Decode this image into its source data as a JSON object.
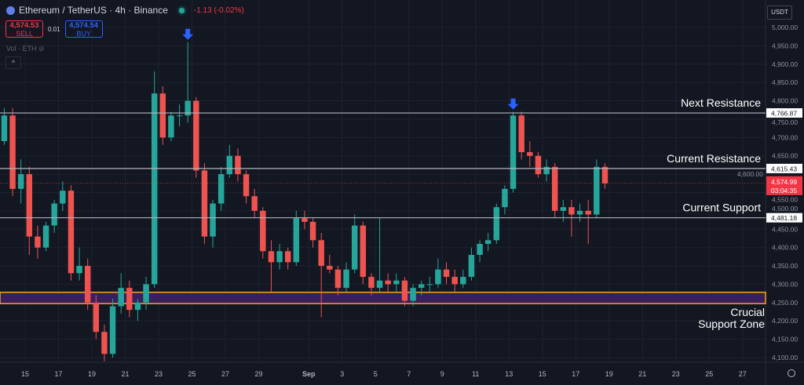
{
  "header": {
    "symbol": "Ethereum / TetherUS · 4h · Binance",
    "change": "-1.13 (-0.02%)",
    "sell_price": "4,574.53",
    "sell_label": "SELL",
    "spread": "0.01",
    "buy_price": "4,574.54",
    "buy_label": "BUY",
    "volume_label": "Vol · ETH",
    "currency_button": "USDT"
  },
  "colors": {
    "up": "#26a69a",
    "down": "#ef5350",
    "zone_fill": "#3a1f5d",
    "zone_border": "#f7a21b",
    "arrow": "#2962ff",
    "background": "#131722"
  },
  "chart_data": {
    "type": "candlestick",
    "title": "Ethereum / TetherUS · 4h · Binance",
    "ylim": [
      4085,
      5030
    ],
    "y_ticks": [
      "4,100.00",
      "4,150.00",
      "4,200.00",
      "4,250.00",
      "4,300.00",
      "4,350.00",
      "4,400.00",
      "4,450.00",
      "4,500.00",
      "4,550.00",
      "4,600.00",
      "4,650.00",
      "4,700.00",
      "4,750.00",
      "4,800.00",
      "4,850.00",
      "4,900.00",
      "4,950.00",
      "5,000.00"
    ],
    "x_ticks": [
      "15",
      "17",
      "19",
      "21",
      "23",
      "25",
      "27",
      "29",
      "Sep",
      "3",
      "5",
      "7",
      "9",
      "11",
      "13",
      "15",
      "17",
      "19",
      "21",
      "23",
      "25",
      "27"
    ],
    "candles_ohlc": [
      [
        4690,
        4780,
        4680,
        4760
      ],
      [
        4760,
        4780,
        4540,
        4560
      ],
      [
        4560,
        4640,
        4520,
        4600
      ],
      [
        4600,
        4620,
        4380,
        4430
      ],
      [
        4430,
        4460,
        4370,
        4400
      ],
      [
        4400,
        4470,
        4390,
        4460
      ],
      [
        4460,
        4530,
        4440,
        4520
      ],
      [
        4520,
        4580,
        4500,
        4555
      ],
      [
        4555,
        4570,
        4310,
        4330
      ],
      [
        4330,
        4400,
        4310,
        4350
      ],
      [
        4350,
        4370,
        4230,
        4250
      ],
      [
        4250,
        4270,
        4150,
        4170
      ],
      [
        4170,
        4190,
        4090,
        4110
      ],
      [
        4110,
        4260,
        4100,
        4240
      ],
      [
        4240,
        4330,
        4220,
        4290
      ],
      [
        4290,
        4310,
        4210,
        4230
      ],
      [
        4230,
        4260,
        4200,
        4250
      ],
      [
        4250,
        4320,
        4230,
        4300
      ],
      [
        4300,
        4880,
        4290,
        4820
      ],
      [
        4820,
        4840,
        4680,
        4700
      ],
      [
        4700,
        4770,
        4690,
        4760
      ],
      [
        4760,
        4790,
        4730,
        4760
      ],
      [
        4760,
        4960,
        4740,
        4800
      ],
      [
        4800,
        4810,
        4590,
        4610
      ],
      [
        4610,
        4630,
        4410,
        4430
      ],
      [
        4430,
        4530,
        4400,
        4520
      ],
      [
        4520,
        4620,
        4500,
        4600
      ],
      [
        4600,
        4680,
        4590,
        4650
      ],
      [
        4650,
        4670,
        4580,
        4600
      ],
      [
        4600,
        4610,
        4520,
        4540
      ],
      [
        4540,
        4560,
        4480,
        4500
      ],
      [
        4500,
        4510,
        4370,
        4390
      ],
      [
        4390,
        4420,
        4280,
        4360
      ],
      [
        4360,
        4410,
        4340,
        4390
      ],
      [
        4390,
        4400,
        4340,
        4360
      ],
      [
        4360,
        4500,
        4350,
        4480
      ],
      [
        4480,
        4500,
        4450,
        4470
      ],
      [
        4470,
        4480,
        4400,
        4420
      ],
      [
        4420,
        4440,
        4210,
        4350
      ],
      [
        4350,
        4380,
        4330,
        4340
      ],
      [
        4340,
        4350,
        4270,
        4290
      ],
      [
        4290,
        4360,
        4280,
        4340
      ],
      [
        4340,
        4490,
        4330,
        4460
      ],
      [
        4460,
        4470,
        4300,
        4320
      ],
      [
        4320,
        4330,
        4270,
        4290
      ],
      [
        4290,
        4480,
        4280,
        4310
      ],
      [
        4310,
        4330,
        4280,
        4300
      ],
      [
        4300,
        4330,
        4280,
        4310
      ],
      [
        4310,
        4320,
        4240,
        4255
      ],
      [
        4255,
        4300,
        4240,
        4290
      ],
      [
        4290,
        4310,
        4270,
        4300
      ],
      [
        4300,
        4320,
        4280,
        4300
      ],
      [
        4300,
        4370,
        4290,
        4340
      ],
      [
        4340,
        4360,
        4300,
        4320
      ],
      [
        4320,
        4340,
        4280,
        4300
      ],
      [
        4300,
        4340,
        4290,
        4320
      ],
      [
        4320,
        4400,
        4310,
        4380
      ],
      [
        4380,
        4420,
        4360,
        4410
      ],
      [
        4410,
        4440,
        4390,
        4420
      ],
      [
        4420,
        4520,
        4410,
        4510
      ],
      [
        4510,
        4570,
        4490,
        4560
      ],
      [
        4560,
        4770,
        4550,
        4760
      ],
      [
        4760,
        4770,
        4640,
        4660
      ],
      [
        4660,
        4690,
        4620,
        4650
      ],
      [
        4650,
        4660,
        4590,
        4600
      ],
      [
        4600,
        4640,
        4580,
        4620
      ],
      [
        4620,
        4630,
        4480,
        4500
      ],
      [
        4500,
        4530,
        4470,
        4510
      ],
      [
        4510,
        4530,
        4430,
        4490
      ],
      [
        4490,
        4520,
        4470,
        4500
      ],
      [
        4500,
        4530,
        4410,
        4490
      ],
      [
        4490,
        4640,
        4480,
        4620
      ],
      [
        4620,
        4630,
        4560,
        4575
      ]
    ],
    "levels": [
      {
        "name": "Next Resistance",
        "price": 4766.87,
        "label": "4,766.87"
      },
      {
        "name": "Current Resistance",
        "price": 4615.43,
        "label": "4,615.43"
      },
      {
        "name": "Current Support",
        "price": 4481.18,
        "label": "4,481.18"
      }
    ],
    "zone": {
      "name_line1": "Crucial",
      "name_line2": "Support Zone",
      "low": 4247,
      "high": 4278
    },
    "markers": [
      {
        "type": "down-arrow",
        "candle": 22
      },
      {
        "type": "down-arrow",
        "candle": 61
      }
    ],
    "last_price": {
      "value": 4574.99,
      "label": "4,574.99",
      "countdown": "03:04:35"
    },
    "grid": true
  }
}
